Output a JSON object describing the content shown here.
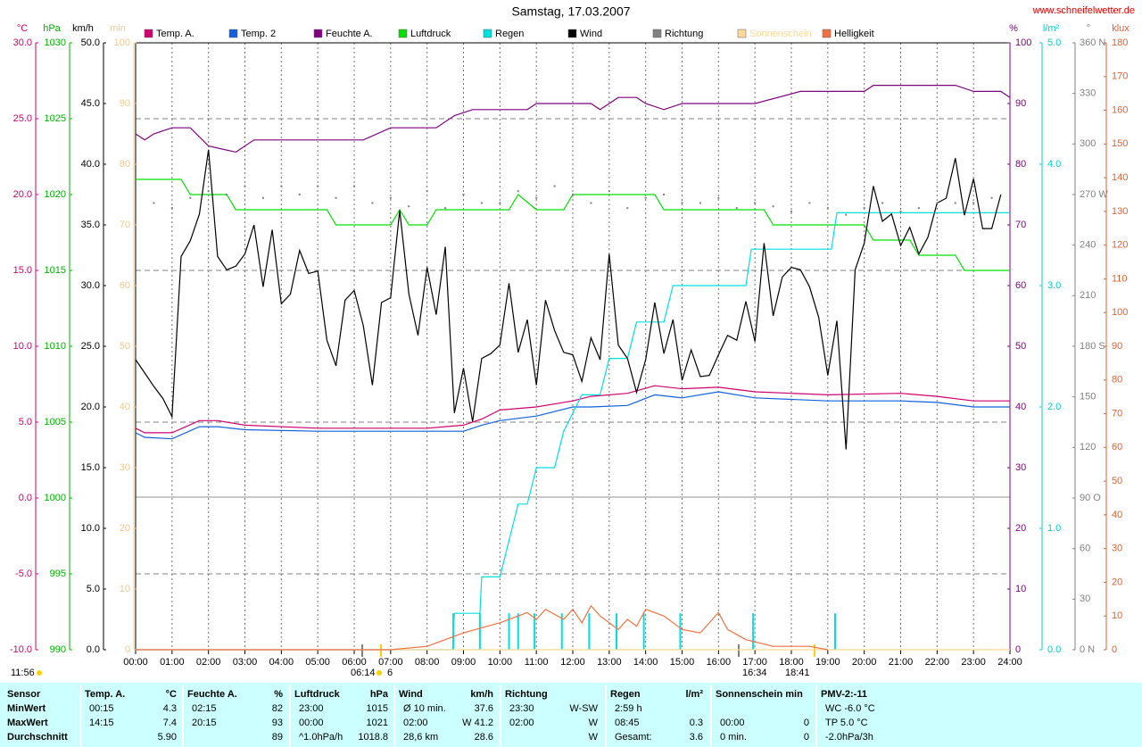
{
  "chart_data": {
    "type": "line",
    "title": "Samstag, 17.03.2007",
    "source": "www.schneifelwetter.de",
    "xlim": [
      0,
      24
    ],
    "xticks": [
      {
        "value": 0,
        "label": "00:00"
      },
      {
        "value": 1,
        "label": "01:00"
      },
      {
        "value": 2,
        "label": "02:00"
      },
      {
        "value": 3,
        "label": "03:00"
      },
      {
        "value": 4,
        "label": "04:00"
      },
      {
        "value": 5,
        "label": "05:00"
      },
      {
        "value": 6,
        "label": "06:00"
      },
      {
        "value": 7,
        "label": "07:00"
      },
      {
        "value": 8,
        "label": "08:00"
      },
      {
        "value": 9,
        "label": "09:00"
      },
      {
        "value": 10,
        "label": "10:00"
      },
      {
        "value": 11,
        "label": "11:00"
      },
      {
        "value": 12,
        "label": "12:00"
      },
      {
        "value": 13,
        "label": "13:00"
      },
      {
        "value": 14,
        "label": "14:00"
      },
      {
        "value": 15,
        "label": "15:00"
      },
      {
        "value": 16,
        "label": "16:00"
      },
      {
        "value": 17,
        "label": "17:00"
      },
      {
        "value": 18,
        "label": "18:00"
      },
      {
        "value": 19,
        "label": "19:00"
      },
      {
        "value": 20,
        "label": "20:00"
      },
      {
        "value": 21,
        "label": "21:00"
      },
      {
        "value": 22,
        "label": "22:00"
      },
      {
        "value": 23,
        "label": "23:00"
      },
      {
        "value": 24,
        "label": "24:00"
      }
    ],
    "grid": true,
    "axes": [
      {
        "label": "°C",
        "color": "#d0006f",
        "lim": [
          -10,
          30
        ],
        "ticks": [
          {
            "value": 30,
            "label": "30.0"
          },
          {
            "value": 25,
            "label": "25.0"
          },
          {
            "value": 20,
            "label": "20.0"
          },
          {
            "value": 15,
            "label": "15.0"
          },
          {
            "value": 10,
            "label": "10.0"
          },
          {
            "value": 5,
            "label": "5.0"
          },
          {
            "value": 0,
            "label": "0.0"
          },
          {
            "value": -5,
            "label": "-5.0"
          },
          {
            "value": -10,
            "label": "-10.0"
          }
        ]
      },
      {
        "label": "hPa",
        "color": "#00b000",
        "lim": [
          990,
          1030
        ],
        "ticks": [
          1030,
          1025,
          1020,
          1015,
          1010,
          1005,
          1000,
          995,
          990
        ]
      },
      {
        "label": "km/h",
        "color": "#000000",
        "lim": [
          0,
          50
        ],
        "ticks": [
          {
            "value": 50,
            "label": "50.0"
          },
          {
            "value": 45,
            "label": "45.0"
          },
          {
            "value": 40,
            "label": "40.0"
          },
          {
            "value": 35,
            "label": "35.0"
          },
          {
            "value": 30,
            "label": "30.0"
          },
          {
            "value": 25,
            "label": "25.0"
          },
          {
            "value": 20,
            "label": "20.0"
          },
          {
            "value": 15,
            "label": "15.0"
          },
          {
            "value": 10,
            "label": "10.0"
          },
          {
            "value": 5,
            "label": "5.0"
          },
          {
            "value": 0,
            "label": "0.0"
          }
        ]
      },
      {
        "label": "min",
        "color": "#f0c890",
        "lim": [
          0,
          100
        ],
        "ticks": [
          100,
          90,
          80,
          70,
          60,
          50,
          40,
          30,
          20,
          10,
          0
        ]
      },
      {
        "label": "%",
        "color": "#800080",
        "lim": [
          0,
          100
        ],
        "ticks": [
          100,
          90,
          80,
          70,
          60,
          50,
          40,
          30,
          20,
          10,
          0
        ]
      },
      {
        "label": "l/m²",
        "color": "#00d0d0",
        "lim": [
          0,
          5
        ],
        "ticks": [
          {
            "value": 5,
            "label": "5.0"
          },
          {
            "value": 4,
            "label": "4.0"
          },
          {
            "value": 3,
            "label": "3.0"
          },
          {
            "value": 2,
            "label": "2.0"
          },
          {
            "value": 1,
            "label": "1.0"
          },
          {
            "value": 0,
            "label": "0.0"
          }
        ]
      },
      {
        "label": "°",
        "color": "#808080",
        "lim": [
          0,
          360
        ],
        "ticks": [
          {
            "value": 360,
            "label": "360 N"
          },
          330,
          300,
          {
            "value": 270,
            "label": "270 W"
          },
          240,
          210,
          {
            "value": 180,
            "label": "180 S"
          },
          150,
          120,
          {
            "value": 90,
            "label": "90 O"
          },
          60,
          30,
          {
            "value": 0,
            "label": "0 N"
          }
        ]
      },
      {
        "label": "klux",
        "color": "#e06030",
        "lim": [
          0,
          180
        ],
        "ticks": [
          180,
          170,
          160,
          150,
          140,
          130,
          120,
          110,
          100,
          90,
          80,
          70,
          60,
          50,
          40,
          30,
          20,
          10,
          0
        ]
      }
    ],
    "series": [
      {
        "name": "Temp. A.",
        "color": "#d0006f",
        "axis": 0,
        "x": [
          0,
          0.25,
          1,
          1.75,
          2.25,
          3,
          5,
          8,
          9,
          9.5,
          10,
          11,
          12,
          12.5,
          13.5,
          14.25,
          15,
          16,
          17,
          19,
          21,
          22,
          23,
          24
        ],
        "values": [
          4.6,
          4.3,
          4.3,
          5.1,
          5.1,
          4.8,
          4.6,
          4.6,
          4.8,
          5.2,
          5.8,
          6.0,
          6.4,
          6.7,
          6.9,
          7.4,
          7.2,
          7.3,
          7.0,
          6.8,
          6.9,
          6.7,
          6.4,
          6.4
        ]
      },
      {
        "name": "Temp. 2",
        "color": "#1060e0",
        "axis": 0,
        "x": [
          0,
          0.25,
          1,
          1.75,
          2.25,
          3,
          5,
          8,
          9,
          9.5,
          10,
          11,
          12,
          12.5,
          13.5,
          14.25,
          15,
          16,
          17,
          19,
          21,
          22,
          23,
          24
        ],
        "values": [
          4.3,
          4.0,
          3.9,
          4.7,
          4.7,
          4.5,
          4.4,
          4.4,
          4.4,
          4.8,
          5.1,
          5.4,
          6.0,
          6.0,
          6.1,
          6.8,
          6.6,
          7.0,
          6.6,
          6.4,
          6.4,
          6.3,
          6.0,
          6.0
        ]
      },
      {
        "name": "Feuchte A.",
        "color": "#800080",
        "axis": 4,
        "x": [
          0,
          0.25,
          0.5,
          1,
          1.5,
          2,
          2.75,
          3.25,
          6.25,
          7,
          8.25,
          8.75,
          9.25,
          10.75,
          11,
          12.5,
          12.75,
          13.25,
          13.75,
          14,
          14.5,
          15,
          17,
          18.25,
          20,
          20.25,
          22.5,
          23,
          23.75,
          24
        ],
        "values": [
          85,
          84,
          85,
          86,
          86,
          83,
          82,
          84,
          84,
          86,
          86,
          88,
          89,
          89,
          90,
          90,
          89,
          91,
          91,
          90,
          89,
          90,
          90,
          92,
          92,
          93,
          93,
          92,
          92,
          91
        ]
      },
      {
        "name": "Luftdruck",
        "color": "#00e000",
        "axis": 1,
        "x": [
          0,
          1.25,
          1.5,
          2.5,
          2.75,
          5.25,
          5.5,
          7.0,
          7.25,
          7.5,
          8.0,
          8.25,
          10.25,
          10.5,
          11.0,
          11.75,
          12.0,
          14.25,
          14.5,
          17.25,
          17.5,
          20.0,
          20.25,
          21.25,
          21.5,
          22.5,
          22.75,
          24
        ],
        "values": [
          1021,
          1021,
          1020,
          1020,
          1019,
          1019,
          1018,
          1018,
          1019,
          1018,
          1018,
          1019,
          1019,
          1020,
          1019,
          1019,
          1020,
          1020,
          1019,
          1019,
          1018,
          1018,
          1017,
          1017,
          1016,
          1016,
          1015,
          1015
        ]
      },
      {
        "name": "Regen",
        "color": "#00e0e0",
        "axis": 5,
        "x": [
          0,
          8.7,
          8.75,
          9.45,
          9.5,
          10.0,
          10.5,
          10.75,
          11.0,
          11.5,
          11.75,
          12.25,
          12.75,
          13.0,
          13.5,
          13.75,
          14.5,
          14.75,
          16.75,
          16.9,
          19.1,
          19.25,
          24
        ],
        "values": [
          0,
          0,
          0.3,
          0.3,
          0.6,
          0.6,
          1.2,
          1.2,
          1.5,
          1.5,
          1.8,
          2.1,
          2.1,
          2.4,
          2.4,
          2.7,
          2.7,
          3.0,
          3.0,
          3.3,
          3.3,
          3.6,
          3.6
        ],
        "bars": {
          "x": [
            8.72,
            9.45,
            10.25,
            10.5,
            10.95,
            11.7,
            12.45,
            13.2,
            13.95,
            14.95,
            16.95,
            19.2
          ],
          "values": [
            0.3,
            0.3,
            0.3,
            0.3,
            0.3,
            0.3,
            0.3,
            0.3,
            0.3,
            0.3,
            0.3,
            0.3
          ]
        }
      },
      {
        "name": "Wind",
        "color": "#000000",
        "axis": 2,
        "x": [
          0,
          0.25,
          0.5,
          0.75,
          1,
          1.25,
          1.5,
          1.75,
          2,
          2.25,
          2.5,
          2.75,
          3,
          3.25,
          3.5,
          3.75,
          4,
          4.25,
          4.5,
          4.75,
          5,
          5.25,
          5.5,
          5.75,
          6,
          6.25,
          6.5,
          6.75,
          7,
          7.25,
          7.5,
          7.75,
          8,
          8.25,
          8.5,
          8.75,
          9,
          9.25,
          9.5,
          9.75,
          10,
          10.25,
          10.5,
          10.75,
          11,
          11.25,
          11.5,
          11.75,
          12,
          12.25,
          12.5,
          12.75,
          13,
          13.25,
          13.5,
          13.75,
          14,
          14.25,
          14.5,
          14.75,
          15,
          15.25,
          15.5,
          15.75,
          16,
          16.25,
          16.5,
          16.75,
          17,
          17.25,
          17.5,
          17.75,
          18,
          18.25,
          18.5,
          18.75,
          19,
          19.25,
          19.5,
          19.75,
          20,
          20.25,
          20.5,
          20.75,
          21,
          21.25,
          21.5,
          21.75,
          22,
          22.25,
          22.5,
          22.75,
          23,
          23.25,
          23.5,
          23.75
        ],
        "values": [
          23.9,
          22.8,
          21.7,
          20.7,
          19.2,
          32.4,
          33.7,
          35.9,
          41.2,
          32.4,
          31.3,
          31.6,
          32.6,
          35.0,
          29.9,
          34.6,
          28.5,
          29.3,
          32.9,
          31.0,
          31.2,
          25.5,
          23.4,
          28.8,
          29.6,
          26.7,
          21.8,
          28.6,
          29.0,
          36.2,
          29.3,
          25.9,
          31.5,
          27.6,
          33.2,
          19.5,
          23.2,
          18.8,
          24.0,
          24.4,
          25.1,
          30.2,
          24.5,
          27.2,
          21.8,
          28.8,
          26.3,
          24.5,
          24.3,
          22.1,
          25.7,
          23.9,
          32.6,
          25.1,
          24.0,
          21.2,
          23.9,
          28.6,
          24.4,
          27.2,
          22.2,
          24.7,
          22.5,
          22.6,
          24.3,
          25.9,
          25.5,
          28.7,
          25.4,
          33.5,
          27.5,
          30.7,
          31.5,
          31.3,
          29.9,
          27.4,
          22.6,
          27.1,
          16.5,
          31.3,
          33.5,
          38.2,
          35.3,
          35.9,
          33.3,
          34.8,
          32.6,
          34.0,
          36.8,
          37.2,
          40.5,
          35.8,
          38.8,
          34.7,
          34.7,
          37.5
        ]
      },
      {
        "name": "Richtung",
        "color": "#808080",
        "axis": 6,
        "style": "dots",
        "x": [
          0,
          0.5,
          1,
          1.5,
          2,
          2.5,
          3,
          3.5,
          4,
          4.5,
          5,
          5.5,
          6,
          6.5,
          7,
          7.5,
          8,
          8.5,
          9,
          9.5,
          10,
          10.5,
          11,
          11.5,
          12,
          12.5,
          13,
          13.5,
          14,
          14.5,
          15,
          15.5,
          16,
          16.5,
          17,
          17.5,
          18,
          18.5,
          19,
          19.5,
          20,
          20.5,
          21,
          21.5,
          22,
          22.5,
          23,
          23.5
        ],
        "values": [
          265,
          265,
          262,
          268,
          272,
          270,
          275,
          268,
          275,
          270,
          275,
          268,
          275,
          265,
          268,
          263,
          272,
          262,
          270,
          265,
          265,
          272,
          268,
          275,
          270,
          265,
          272,
          262,
          268,
          270,
          265,
          265,
          268,
          262,
          265,
          263,
          260,
          265,
          262,
          258,
          262,
          265,
          260,
          262,
          265,
          265,
          265,
          268
        ]
      },
      {
        "name": "Sonnenschein",
        "color": "#ffd898",
        "axis": 3,
        "x": [
          0,
          24
        ],
        "values": [
          0,
          0
        ]
      },
      {
        "name": "Helligkeit",
        "color": "#f07040",
        "axis": 7,
        "x": [
          0,
          7,
          8,
          9,
          10,
          10.75,
          11,
          11.25,
          11.75,
          12,
          12.25,
          12.5,
          12.75,
          13.25,
          13.5,
          13.75,
          14,
          14.5,
          15,
          15.5,
          16,
          16.25,
          16.75,
          17.5,
          18.5,
          19
        ],
        "values": [
          0,
          0,
          1,
          5,
          8,
          11,
          9,
          12,
          9,
          12,
          8,
          13,
          10,
          6,
          9,
          7,
          12,
          10,
          6,
          5,
          11,
          6,
          3,
          1,
          1,
          0
        ]
      }
    ],
    "annotations": [
      "11:56",
      "06:14",
      "6",
      "16:34",
      "18:41"
    ]
  },
  "table": {
    "sensor": {
      "title": "Sensor",
      "rows": [
        "MinWert",
        "MaxWert",
        "Durchschnitt"
      ]
    },
    "blocks": [
      {
        "title": "Temp. A.",
        "unit": "°C",
        "rows": [
          [
            "00:15",
            "4.3"
          ],
          [
            "14:15",
            "7.4"
          ],
          [
            null,
            "5.90"
          ]
        ]
      },
      {
        "title": "Feuchte A.",
        "unit": "%",
        "rows": [
          [
            "02:15",
            "82"
          ],
          [
            "20:15",
            "93"
          ],
          [
            null,
            "89"
          ]
        ]
      },
      {
        "title": "Luftdruck",
        "unit": "hPa",
        "rows": [
          [
            "23:00",
            "1015"
          ],
          [
            "00:00",
            "1021"
          ],
          [
            "^1.0hPa/h",
            "1018.8"
          ]
        ]
      },
      {
        "title": "Wind",
        "unit": "km/h",
        "rows": [
          [
            "Ø 10 min.",
            "37.6"
          ],
          [
            "02:00",
            "W 41.2"
          ],
          [
            "28,6 km",
            "28.6"
          ]
        ]
      },
      {
        "title": "Richtung",
        "rows": [
          [
            "23:30",
            "W-SW"
          ],
          [
            "02:00",
            "W"
          ],
          [
            null,
            "W"
          ]
        ]
      },
      {
        "title": "Regen",
        "unit": "l/m²",
        "rows": [
          [
            "2:59 h",
            null
          ],
          [
            "08:45",
            "0.3"
          ],
          [
            "Gesamt:",
            "3.6"
          ]
        ]
      },
      {
        "title": "Sonnenschein min",
        "rows": [
          [
            null,
            null
          ],
          [
            "00:00",
            "0"
          ],
          [
            "0 min.",
            "0"
          ]
        ]
      },
      {
        "title": "PMV-2:-11",
        "rows": [
          [
            "WC -6.0 °C",
            null
          ],
          [
            "TP 5.0 °C",
            null
          ],
          [
            "-2.0hPa/3h",
            null
          ]
        ]
      }
    ]
  }
}
